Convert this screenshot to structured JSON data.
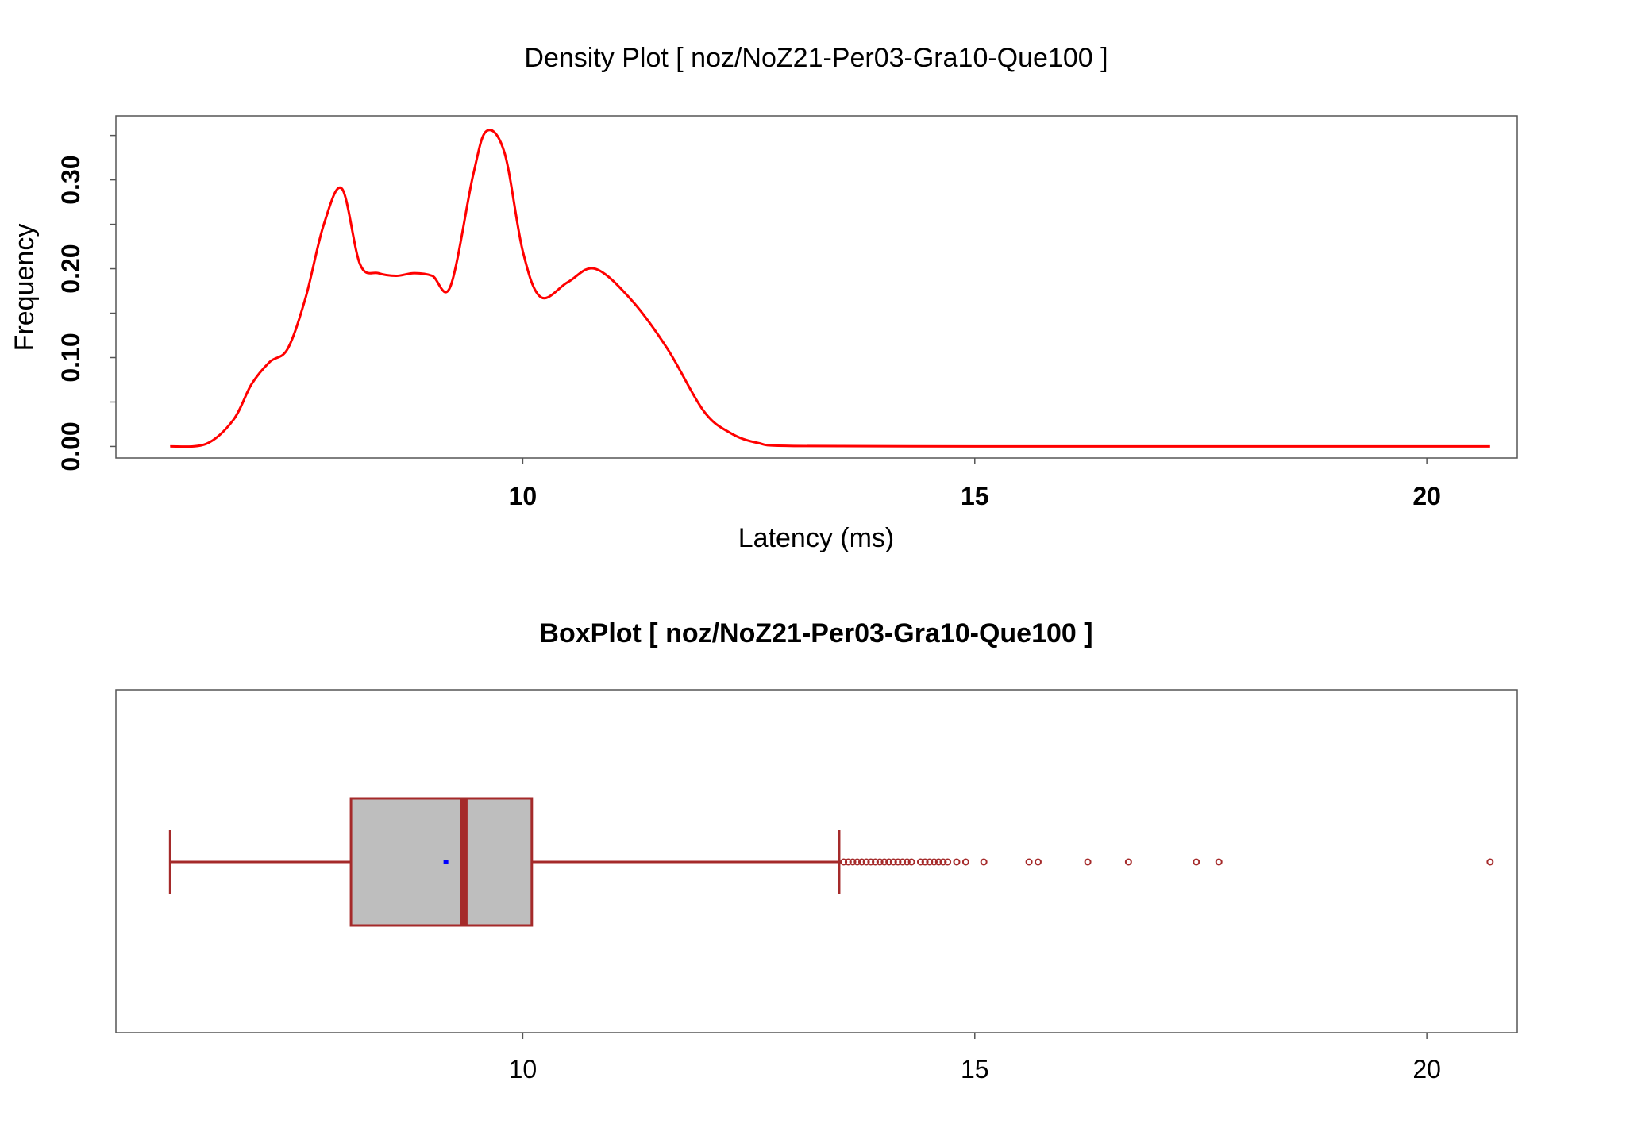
{
  "chart_data": [
    {
      "type": "line",
      "title": "Density Plot [ noz/NoZ21-Per03-Gra10-Que100 ]",
      "xlabel": "Latency (ms)",
      "ylabel": "Frequency",
      "xlim": [
        5.5,
        21.0
      ],
      "ylim": [
        -0.013,
        0.372
      ],
      "x_ticks": [
        10,
        15,
        20
      ],
      "x_tick_labels": [
        "10",
        "15",
        "20"
      ],
      "y_ticks": [
        0.0,
        0.1,
        0.2,
        0.3
      ],
      "y_tick_labels": [
        "0.00",
        "0.10",
        "0.20",
        "0.30"
      ],
      "y_minor_ticks": [
        0.05,
        0.15,
        0.25,
        0.35
      ],
      "series": [
        {
          "color": "#ff0000",
          "x": [
            6.1,
            6.5,
            6.8,
            7.0,
            7.2,
            7.4,
            7.6,
            7.8,
            8.0,
            8.2,
            8.4,
            8.6,
            8.8,
            9.0,
            9.2,
            9.45,
            9.6,
            9.8,
            10.0,
            10.2,
            10.5,
            10.8,
            11.2,
            11.6,
            12.0,
            12.3,
            12.6,
            13.0,
            15.0,
            18.0,
            20.7
          ],
          "y": [
            0.0,
            0.003,
            0.03,
            0.07,
            0.095,
            0.11,
            0.168,
            0.25,
            0.29,
            0.205,
            0.195,
            0.192,
            0.195,
            0.192,
            0.18,
            0.305,
            0.355,
            0.33,
            0.22,
            0.168,
            0.185,
            0.2,
            0.165,
            0.11,
            0.04,
            0.015,
            0.004,
            0.0005,
            0.0,
            0.0,
            0.0
          ]
        }
      ]
    },
    {
      "type": "box",
      "title": "BoxPlot [ noz/NoZ21-Per03-Gra10-Que100 ]",
      "xlim": [
        5.5,
        21.0
      ],
      "x_ticks": [
        10,
        15,
        20
      ],
      "x_tick_labels": [
        "10",
        "15",
        "20"
      ],
      "box_color": "#a52a2a",
      "box_fill": "#bebebe",
      "mean_color": "#0000ff",
      "stats": {
        "min": 6.1,
        "q1": 8.1,
        "median": 9.35,
        "q3": 10.1,
        "whisker_high": 13.5,
        "mean": 9.15
      },
      "outliers": [
        13.55,
        13.6,
        13.65,
        13.7,
        13.75,
        13.8,
        13.85,
        13.9,
        13.95,
        14.0,
        14.05,
        14.1,
        14.15,
        14.2,
        14.25,
        14.3,
        14.4,
        14.45,
        14.5,
        14.55,
        14.6,
        14.65,
        14.7,
        14.8,
        14.9,
        15.1,
        15.6,
        15.7,
        16.25,
        16.7,
        17.45,
        17.7,
        20.7
      ]
    }
  ]
}
